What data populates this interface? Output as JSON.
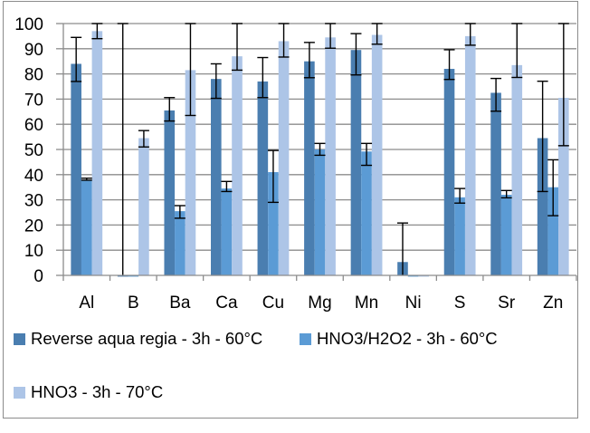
{
  "chart_data": {
    "type": "bar",
    "title": "",
    "xlabel": "",
    "ylabel": "",
    "ylim": [
      0,
      100
    ],
    "yticks": [
      "0",
      "10",
      "20",
      "30",
      "40",
      "50",
      "60",
      "70",
      "80",
      "90",
      "100"
    ],
    "grid": true,
    "legend_position": "bottom",
    "categories": [
      "Al",
      "B",
      "Ba",
      "Ca",
      "Cu",
      "Mg",
      "Mn",
      "Ni",
      "S",
      "Sr",
      "Zn"
    ],
    "series": [
      {
        "name": "Reverse aqua regia - 3h - 60°C",
        "color": "#4a7eb0",
        "values": [
          84,
          -0.5,
          65.5,
          78,
          77,
          85,
          89.5,
          5.3,
          82,
          72.5,
          54.5
        ],
        "err_low": [
          77,
          0,
          61.3,
          70.3,
          70.6,
          78.5,
          79.6,
          0,
          77.8,
          65.2,
          33.3
        ],
        "err_high": [
          94.5,
          100,
          70.6,
          84,
          86.5,
          92.5,
          96,
          20.8,
          89.6,
          78.2,
          77.1
        ]
      },
      {
        "name": "HNO3/H2O2 - 3h - 60°C",
        "color": "#5b9bd5",
        "values": [
          38,
          -0.5,
          25.5,
          34.5,
          41,
          50,
          49.2,
          -0.5,
          31,
          32,
          35
        ],
        "err_low": [
          37.8,
          -0.5,
          22.7,
          33.3,
          29,
          47.7,
          43.7,
          -0.5,
          28.7,
          30.8,
          23.7
        ],
        "err_high": [
          38.6,
          -0.5,
          27.7,
          37.3,
          49.6,
          52.4,
          52.4,
          -0.5,
          34.5,
          33.7,
          45.9
        ]
      },
      {
        "name": "HNO3 - 3h - 70°C",
        "color": "#adc5e7",
        "values": [
          97,
          54.5,
          81.5,
          87,
          93,
          94.5,
          95.5,
          -0.5,
          95,
          83.5,
          70.5
        ],
        "err_low": [
          94,
          51,
          63.5,
          81.5,
          86.7,
          90.2,
          91.8,
          -0.5,
          91.4,
          78.6,
          51.5
        ],
        "err_high": [
          100,
          57.5,
          100,
          100,
          100,
          100,
          100,
          -0.5,
          100,
          100,
          100
        ]
      }
    ]
  }
}
